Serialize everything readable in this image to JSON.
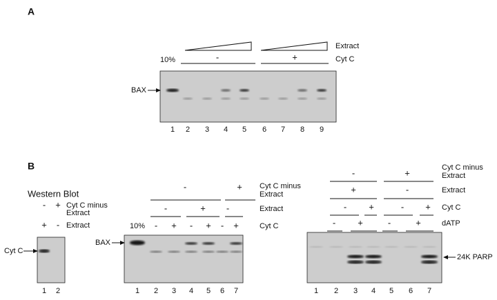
{
  "panel_a": {
    "label": "A",
    "extract_label": "Extract",
    "cytc_label": "Cyt C",
    "cytc_signs": [
      "-",
      "+"
    ],
    "percent": "10%",
    "band_label": "BAX",
    "lanes": [
      "1",
      "2",
      "3",
      "4",
      "5",
      "6",
      "7",
      "8",
      "9"
    ]
  },
  "panel_b": {
    "label": "B",
    "western": {
      "title": "Western Blot",
      "rows": [
        {
          "label": [
            "Cyt C minus",
            "Extract"
          ],
          "signs": [
            "-",
            "+"
          ]
        },
        {
          "label": [
            "Extract"
          ],
          "signs": [
            "+",
            "-"
          ]
        }
      ],
      "band_label": "Cyt C",
      "lanes": [
        "1",
        "2"
      ]
    },
    "middle": {
      "rows": [
        {
          "label": [
            "Cyt C minus",
            "Extract"
          ],
          "signs": [
            "-",
            "+"
          ]
        },
        {
          "label": [
            "Extract"
          ],
          "signs": [
            "-",
            "+",
            "-"
          ]
        },
        {
          "label": [
            "Cyt C"
          ],
          "signs": [
            "-",
            "+",
            "-",
            "+",
            "-",
            "+"
          ]
        }
      ],
      "percent": "10%",
      "band_label": "BAX",
      "lanes": [
        "1",
        "2",
        "3",
        "4",
        "5",
        "6",
        "7"
      ]
    },
    "right": {
      "rows": [
        {
          "label": [
            "Cyt C minus",
            "Extract"
          ],
          "signs": [
            "-",
            "+"
          ]
        },
        {
          "label": [
            "Extract"
          ],
          "signs": [
            "+",
            "-"
          ]
        },
        {
          "label": [
            "Cyt C"
          ],
          "signs": [
            "-",
            "+",
            "-",
            "+"
          ]
        },
        {
          "label": [
            "dATP"
          ],
          "signs": [
            "-",
            "+",
            "-",
            "+"
          ]
        }
      ],
      "band_label": "24K PARP",
      "lanes": [
        "1",
        "2",
        "3",
        "4",
        "5",
        "6",
        "7"
      ]
    }
  }
}
